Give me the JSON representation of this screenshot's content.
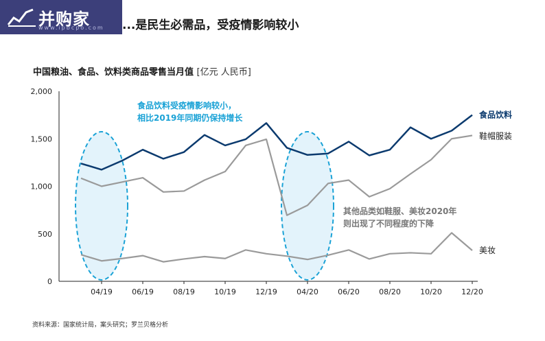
{
  "logo": {
    "text": "并购家",
    "url": "www.ipbcpo.com",
    "bg": "#3c3f7a"
  },
  "headline": "...是民生必需品，受疫情影响较小",
  "chart_title": {
    "main": "中国粮油、食品、饮料类商品零售当月值",
    "unit": "[亿元 人民币]"
  },
  "source": "资料来源：国家统计局，案头研究；罗兰贝格分析",
  "colors": {
    "food": "#0b3a6e",
    "shoes": "#9a9a9a",
    "cosmetics": "#9a9a9a",
    "highlight": "#1aa2d6"
  },
  "annotations": {
    "blue": [
      "食品饮料受疫情影响较小，",
      "相比2019年同期仍保持增长"
    ],
    "gray": [
      "其他品类如鞋服、美妆2020年",
      "则出现了不同程度的下降"
    ]
  },
  "chart_data": {
    "type": "line",
    "x": [
      "03/19",
      "04/19",
      "05/19",
      "06/19",
      "07/19",
      "08/19",
      "09/19",
      "10/19",
      "11/19",
      "12/19",
      "03/20",
      "04/20",
      "05/20",
      "06/20",
      "07/20",
      "08/20",
      "09/20",
      "10/20",
      "11/20",
      "12/20"
    ],
    "x_tick_labels": [
      "04/19",
      "06/19",
      "08/19",
      "10/19",
      "12/19",
      "04/20",
      "06/20",
      "08/20",
      "10/20",
      "12/20"
    ],
    "ylim": [
      0,
      2000
    ],
    "y_ticks": [
      0,
      500,
      1000,
      1500,
      2000
    ],
    "y_tick_labels": [
      "0",
      "500",
      "1,000",
      "1,500",
      "2,000"
    ],
    "series": [
      {
        "name": "食品饮料",
        "color": "#0b3a6e",
        "values": [
          1240,
          1175,
          1270,
          1385,
          1290,
          1360,
          1540,
          1430,
          1495,
          1665,
          1405,
          1330,
          1345,
          1470,
          1325,
          1385,
          1620,
          1500,
          1585,
          1750
        ]
      },
      {
        "name": "鞋帽服装",
        "color": "#9a9a9a",
        "values": [
          1085,
          1000,
          1045,
          1090,
          940,
          950,
          1065,
          1155,
          1430,
          1495,
          695,
          800,
          1030,
          1065,
          890,
          975,
          1130,
          1280,
          1500,
          1535
        ]
      },
      {
        "name": "美妆",
        "color": "#9a9a9a",
        "values": [
          280,
          215,
          240,
          270,
          205,
          235,
          260,
          240,
          330,
          290,
          265,
          230,
          275,
          330,
          235,
          290,
          300,
          290,
          510,
          325
        ]
      }
    ],
    "highlight_periods": [
      [
        "03/19",
        "05/19"
      ],
      [
        "03/20",
        "05/20"
      ]
    ],
    "grid": false,
    "legend": "inline-right"
  }
}
